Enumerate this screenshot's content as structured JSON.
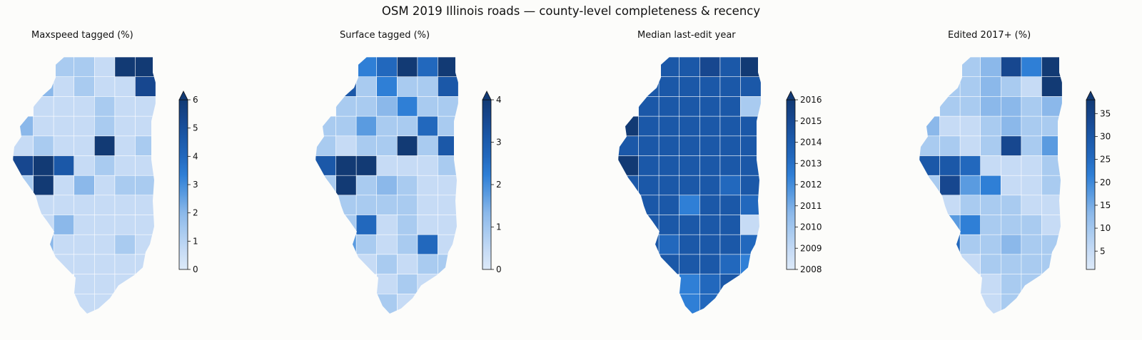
{
  "title": "OSM 2019 Illinois roads — county-level completeness & recency",
  "colormap": [
    "#ddeaf9",
    "#c6dbf5",
    "#a9cbf0",
    "#8bb8ea",
    "#5a9be0",
    "#2f7fd6",
    "#2268bd",
    "#1b58a8",
    "#17478f",
    "#123a74"
  ],
  "border_color": "#ffffff",
  "panels": [
    {
      "title": "Maxspeed tagged (%)",
      "ticks": [
        "0",
        "1",
        "2",
        "3",
        "4",
        "5",
        "6"
      ],
      "extend": "max",
      "vmin": 0,
      "vmax": 6
    },
    {
      "title": "Surface tagged (%)",
      "ticks": [
        "0",
        "1",
        "2",
        "3",
        "4"
      ],
      "extend": "max",
      "vmin": 0,
      "vmax": 4
    },
    {
      "title": "Median last-edit year",
      "ticks": [
        "2008",
        "2009",
        "2010",
        "2011",
        "2012",
        "2013",
        "2014",
        "2015",
        "2016"
      ],
      "extend": "max",
      "vmin": 2008,
      "vmax": 2016
    },
    {
      "title": "Edited 2017+ (%)",
      "ticks": [
        "5",
        "10",
        "15",
        "20",
        "25",
        "30",
        "35"
      ],
      "extend": "max",
      "vmin": 1,
      "vmax": 38
    }
  ],
  "county_levels": [
    [
      3,
      3,
      2,
      2,
      1,
      9,
      9,
      1,
      3,
      1,
      2,
      1,
      1,
      8,
      9,
      1,
      1,
      1,
      2,
      1,
      1,
      3,
      1,
      1,
      1,
      2,
      1,
      1,
      1,
      2,
      1,
      1,
      9,
      1,
      2,
      8,
      9,
      7,
      1,
      2,
      1,
      1,
      2,
      9,
      1,
      3,
      1,
      2,
      2,
      1,
      1,
      1,
      1,
      1,
      1,
      1,
      1,
      1,
      3,
      1,
      1,
      1,
      1,
      1,
      3,
      1,
      1,
      1,
      2,
      1,
      1,
      1,
      1,
      1,
      1,
      1,
      1,
      9,
      1,
      1,
      1,
      1,
      1,
      1,
      1,
      1,
      1,
      1,
      1,
      1,
      2,
      1,
      1,
      1,
      1,
      1,
      1,
      7,
      1,
      3,
      1,
      1,
      1
    ],
    [
      2,
      6,
      5,
      6,
      9,
      6,
      9,
      1,
      7,
      2,
      5,
      2,
      2,
      7,
      9,
      2,
      2,
      3,
      5,
      2,
      2,
      2,
      2,
      4,
      2,
      2,
      6,
      2,
      2,
      1,
      2,
      2,
      9,
      2,
      7,
      7,
      9,
      9,
      1,
      1,
      1,
      2,
      2,
      9,
      2,
      3,
      2,
      1,
      1,
      5,
      2,
      2,
      2,
      2,
      1,
      1,
      1,
      2,
      6,
      1,
      2,
      1,
      1,
      1,
      4,
      2,
      1,
      2,
      6,
      1,
      1,
      1,
      1,
      2,
      1,
      2,
      2,
      2,
      1,
      1,
      1,
      2,
      1,
      2,
      2,
      1,
      1,
      2,
      1,
      1,
      2,
      2,
      2,
      1,
      1,
      1,
      1,
      9,
      1,
      5,
      1,
      1,
      1
    ],
    [
      7,
      7,
      7,
      7,
      8,
      7,
      9,
      6,
      7,
      7,
      7,
      7,
      7,
      7,
      9,
      7,
      7,
      7,
      7,
      7,
      2,
      9,
      7,
      7,
      7,
      7,
      7,
      7,
      7,
      7,
      7,
      7,
      7,
      7,
      7,
      9,
      7,
      7,
      7,
      7,
      7,
      7,
      7,
      7,
      7,
      7,
      7,
      6,
      7,
      7,
      7,
      7,
      5,
      7,
      7,
      6,
      6,
      7,
      7,
      7,
      7,
      7,
      1,
      7,
      7,
      6,
      7,
      7,
      7,
      6,
      7,
      6,
      7,
      7,
      7,
      6,
      5,
      7,
      6,
      6,
      5,
      6,
      7,
      6,
      5,
      7,
      1,
      5,
      6,
      5,
      6,
      6,
      6,
      6,
      1,
      5,
      6,
      5,
      6,
      5,
      6,
      5,
      1
    ],
    [
      2,
      1,
      2,
      3,
      8,
      5,
      9,
      1,
      2,
      2,
      3,
      2,
      1,
      9,
      9,
      2,
      2,
      3,
      3,
      2,
      3,
      3,
      1,
      1,
      2,
      3,
      2,
      2,
      2,
      2,
      1,
      2,
      8,
      2,
      4,
      7,
      7,
      6,
      1,
      1,
      1,
      2,
      2,
      8,
      4,
      5,
      1,
      1,
      2,
      1,
      1,
      2,
      2,
      2,
      1,
      1,
      2,
      4,
      5,
      2,
      2,
      2,
      1,
      2,
      6,
      2,
      2,
      3,
      2,
      2,
      1,
      1,
      1,
      2,
      2,
      2,
      2,
      2,
      1,
      2,
      1,
      2,
      2,
      2,
      1,
      1,
      1,
      1,
      2,
      2,
      2,
      1,
      1,
      1,
      1,
      1,
      1,
      5,
      1,
      2,
      1,
      1,
      1
    ]
  ]
}
